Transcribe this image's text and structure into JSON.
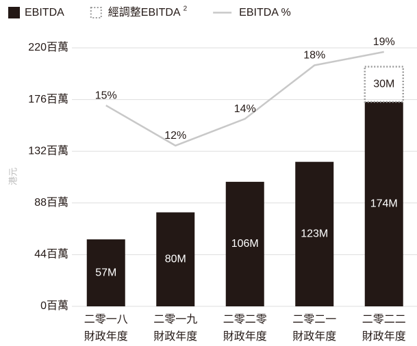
{
  "chart_data": {
    "type": "bar",
    "y_label": "港元",
    "categories": [
      [
        "二零一八",
        "財政年度"
      ],
      [
        "二零一九",
        "財政年度"
      ],
      [
        "二零二零",
        "財政年度"
      ],
      [
        "二零二一",
        "財政年度"
      ],
      [
        "二零二二",
        "財政年度"
      ]
    ],
    "series": [
      {
        "name": "EBITDA",
        "type": "bar",
        "color": "#231815",
        "values": [
          57,
          80,
          106,
          123,
          174
        ],
        "value_labels": [
          "57M",
          "80M",
          "106M",
          "123M",
          "174M"
        ]
      },
      {
        "name": "經調整EBITDA",
        "footnote": "2",
        "type": "bar",
        "style": "dotted",
        "color": "#9a9a9a",
        "values": [
          null,
          null,
          null,
          null,
          30
        ],
        "value_labels": [
          null,
          null,
          null,
          null,
          "30M"
        ]
      },
      {
        "name": "EBITDA %",
        "type": "line",
        "axis": "y2",
        "color": "#c8c8c8",
        "values": [
          15,
          12,
          14,
          18,
          19
        ],
        "value_labels": [
          "15%",
          "12%",
          "14%",
          "18%",
          "19%"
        ]
      }
    ],
    "ylim": [
      0,
      220
    ],
    "yticks": [
      {
        "value": 0,
        "label": "0百萬"
      },
      {
        "value": 44,
        "label": "44百萬"
      },
      {
        "value": 88,
        "label": "88百萬"
      },
      {
        "value": 132,
        "label": "132百萬"
      },
      {
        "value": 176,
        "label": "176百萬"
      },
      {
        "value": 220,
        "label": "220百萬"
      }
    ],
    "y2lim": [
      0,
      19.3
    ],
    "grid": true
  }
}
